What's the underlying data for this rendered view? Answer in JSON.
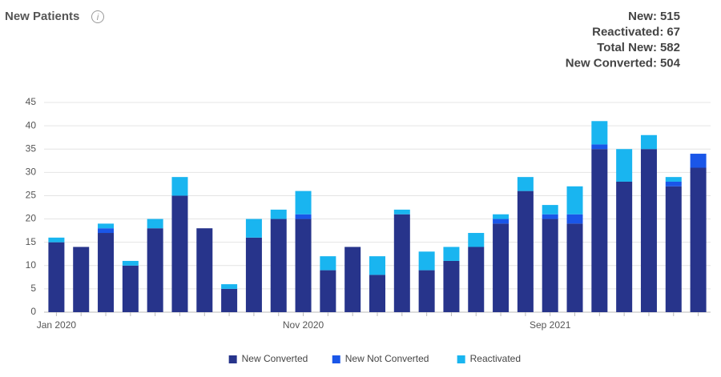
{
  "header": {
    "title": "New Patients"
  },
  "summary": [
    {
      "label": "New:",
      "value": 515
    },
    {
      "label": "Reactivated:",
      "value": 67
    },
    {
      "label": "Total New:",
      "value": 582
    },
    {
      "label": "New Converted:",
      "value": 504
    }
  ],
  "chart_data": {
    "type": "stacked_bar",
    "categories": [
      "Jan 2020",
      null,
      null,
      null,
      null,
      null,
      null,
      null,
      null,
      null,
      "Nov 2020",
      null,
      null,
      null,
      null,
      null,
      null,
      null,
      null,
      null,
      "Sep 2021",
      null,
      null,
      null,
      null,
      null,
      null
    ],
    "series": [
      {
        "name": "New Converted",
        "color": "#27348b",
        "values": [
          15,
          14,
          17,
          10,
          18,
          25,
          18,
          5,
          16,
          20,
          20,
          9,
          14,
          8,
          21,
          9,
          11,
          14,
          19,
          26,
          20,
          19,
          35,
          28,
          35,
          27,
          31
        ]
      },
      {
        "name": "New Not Converted",
        "color": "#1a56e8",
        "values": [
          0,
          0,
          1,
          0,
          0,
          0,
          0,
          0,
          0,
          0,
          1,
          0,
          0,
          0,
          0,
          0,
          0,
          0,
          1,
          0,
          1,
          2,
          1,
          0,
          0,
          1,
          3
        ]
      },
      {
        "name": "Reactivated",
        "color": "#19b5f0",
        "values": [
          1,
          0,
          1,
          1,
          2,
          4,
          0,
          1,
          4,
          2,
          5,
          3,
          0,
          4,
          1,
          4,
          3,
          3,
          1,
          3,
          2,
          6,
          5,
          7,
          3,
          1,
          0
        ]
      }
    ],
    "ylim": [
      0,
      45
    ],
    "yticks": [
      0,
      5,
      10,
      15,
      20,
      25,
      30,
      35,
      40,
      45
    ],
    "grid": true,
    "legend": "bottom"
  }
}
